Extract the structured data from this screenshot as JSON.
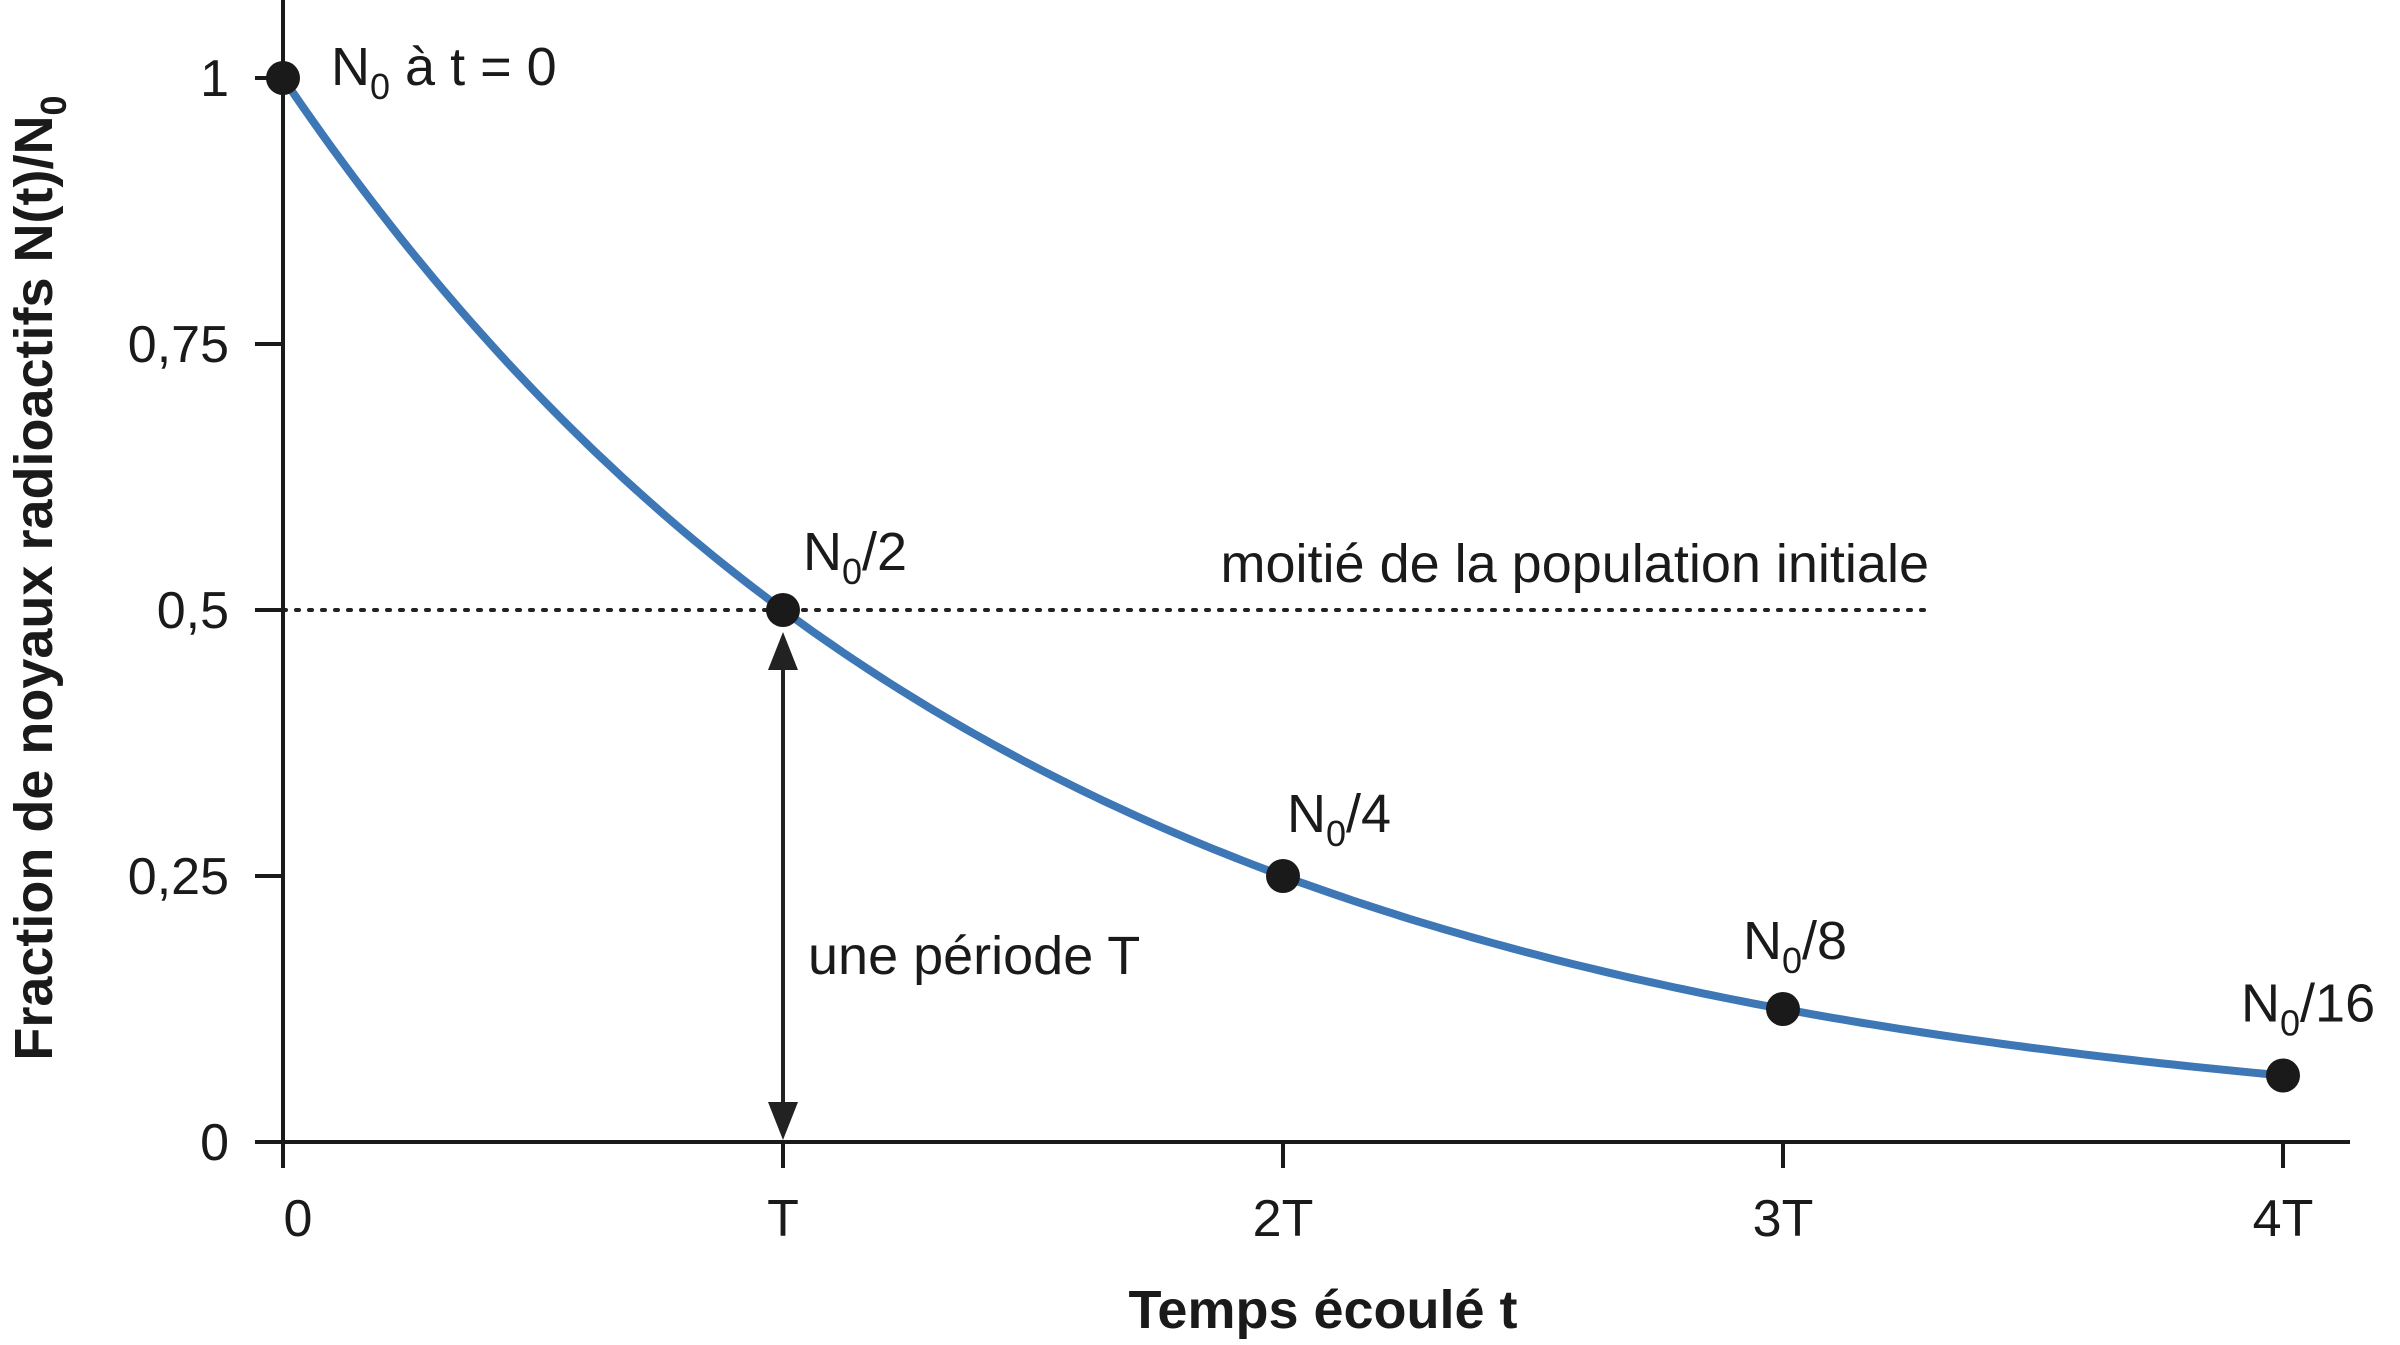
{
  "chart_data": {
    "type": "line",
    "xlabel": "Temps écoulé t",
    "ylabel_main": "Fraction de noyaux radioactifs",
    "ylabel_formula": {
      "base1": "N(t)/N",
      "sub1": "0"
    },
    "x_ticks": [
      {
        "value": 0,
        "label": "0"
      },
      {
        "value": 1,
        "label": "T"
      },
      {
        "value": 2,
        "label": "2T"
      },
      {
        "value": 3,
        "label": "3T"
      },
      {
        "value": 4,
        "label": "4T"
      }
    ],
    "y_ticks": [
      {
        "value": 0,
        "label": "0"
      },
      {
        "value": 0.25,
        "label": "0,25"
      },
      {
        "value": 0.5,
        "label": "0,5"
      },
      {
        "value": 0.75,
        "label": "0,75"
      },
      {
        "value": 1,
        "label": "1"
      }
    ],
    "xlim": [
      0,
      4.15
    ],
    "ylim": [
      0,
      1.07
    ],
    "curve": {
      "function": "2^(-t/T)",
      "color": "#3e77b5"
    },
    "points": [
      {
        "x": 0,
        "y": 1,
        "label_base": "N",
        "label_sub": "0",
        "label_rest": " à t = 0"
      },
      {
        "x": 1,
        "y": 0.5,
        "label_base": "N",
        "label_sub": "0",
        "label_rest": "/2"
      },
      {
        "x": 2,
        "y": 0.25,
        "label_base": "N",
        "label_sub": "0",
        "label_rest": "/4"
      },
      {
        "x": 3,
        "y": 0.125,
        "label_base": "N",
        "label_sub": "0",
        "label_rest": "/8"
      },
      {
        "x": 4,
        "y": 0.0625,
        "label_base": "N",
        "label_sub": "0",
        "label_rest": "/16"
      }
    ],
    "half_line": {
      "y": 0.5,
      "x_end": 3.3,
      "label": "moitié de la population initiale"
    },
    "period_arrow": {
      "x": 1,
      "y_from": 0,
      "y_to": 0.5,
      "label": "une période T"
    },
    "grid": false
  }
}
